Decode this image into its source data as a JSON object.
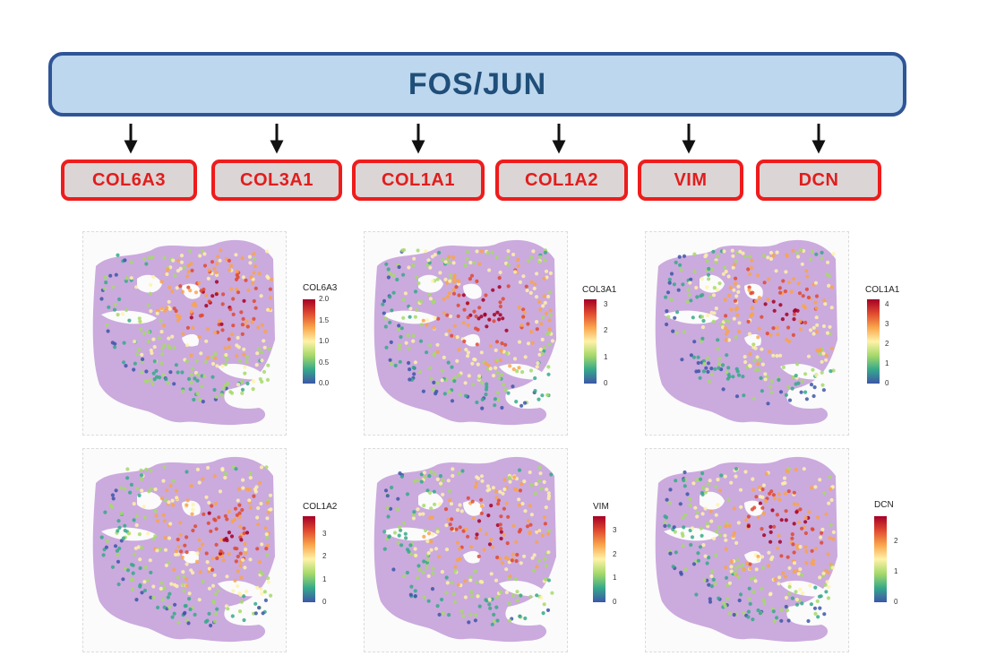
{
  "top": {
    "label": "FOS/JUN"
  },
  "targets": [
    "COL6A3",
    "COL3A1",
    "COL1A1",
    "COL1A2",
    "VIM",
    "DCN"
  ],
  "panels": [
    {
      "legend_title": "COL6A3",
      "ticks": [
        "2.0",
        "1.5",
        "1.0",
        "0.5",
        "0.0"
      ]
    },
    {
      "legend_title": "COL3A1",
      "ticks": [
        "3",
        "2",
        "1",
        "0"
      ]
    },
    {
      "legend_title": "COL1A1",
      "ticks": [
        "4",
        "3",
        "2",
        "1",
        "0"
      ]
    },
    {
      "legend_title": "COL1A2",
      "ticks": [
        "3",
        "2",
        "1",
        "0"
      ]
    },
    {
      "legend_title": "VIM",
      "ticks": [
        "3",
        "2",
        "1",
        "0"
      ]
    },
    {
      "legend_title": "DCN",
      "ticks": [
        "2",
        "1",
        "0"
      ]
    }
  ],
  "colors": {
    "top_fill": "#bdd7ee",
    "top_border": "#2f5597",
    "top_text": "#1f4e79",
    "target_fill": "#dcd5d5",
    "target_border": "#ee1c1c",
    "target_text": "#e11d1d",
    "tissue": "#c29bd8"
  }
}
